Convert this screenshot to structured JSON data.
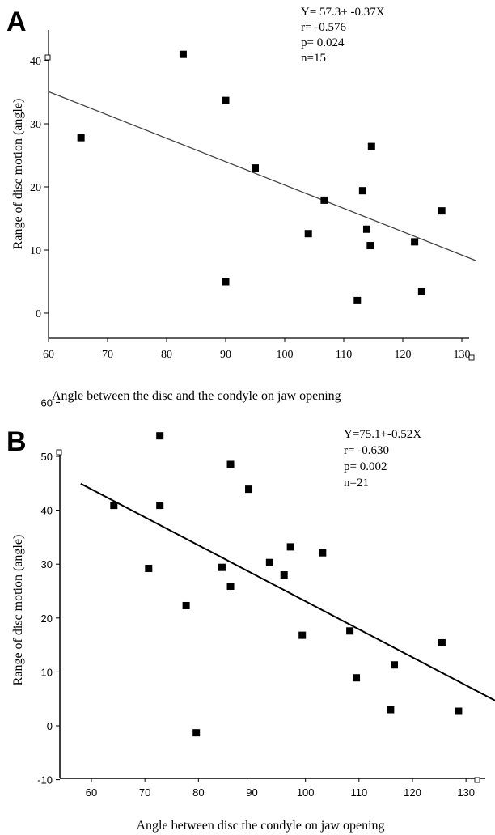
{
  "chart_data": [
    {
      "type": "scatter",
      "panel_label": "A",
      "xlabel": "Angle between the disc and the condyle on jaw opening",
      "ylabel": "Range of disc motion (angle)",
      "xlim": [
        60,
        133
      ],
      "ylim": [
        -4,
        44
      ],
      "xticks": [
        60,
        70,
        80,
        90,
        100,
        110,
        120,
        130
      ],
      "yticks": [
        0,
        10,
        20,
        30,
        40
      ],
      "grid": false,
      "stats": [
        "Y= 57.3+ -0.37X",
        "r= -0.576",
        "p= 0.024",
        "n=15"
      ],
      "regression": {
        "intercept": 57.3,
        "slope": -0.37
      },
      "points": [
        {
          "x": 65.5,
          "y": 27.8
        },
        {
          "x": 82.8,
          "y": 41.0
        },
        {
          "x": 90.0,
          "y": 33.7
        },
        {
          "x": 90.0,
          "y": 5.0
        },
        {
          "x": 95.0,
          "y": 23.0
        },
        {
          "x": 104.0,
          "y": 12.6
        },
        {
          "x": 106.7,
          "y": 17.9
        },
        {
          "x": 112.3,
          "y": 2.0
        },
        {
          "x": 113.2,
          "y": 19.4
        },
        {
          "x": 113.9,
          "y": 13.3
        },
        {
          "x": 114.5,
          "y": 10.7
        },
        {
          "x": 114.7,
          "y": 26.4
        },
        {
          "x": 122.0,
          "y": 11.3
        },
        {
          "x": 123.2,
          "y": 3.4
        },
        {
          "x": 126.6,
          "y": 16.2
        }
      ]
    },
    {
      "type": "scatter",
      "panel_label": "B",
      "xlabel": "Angle between disc the condyle on jaw opening",
      "ylabel": "Range of disc motion (angle)",
      "xlim": [
        55,
        135
      ],
      "ylim": [
        -10,
        60
      ],
      "xticks": [
        60,
        70,
        80,
        90,
        100,
        110,
        120,
        130
      ],
      "yticks": [
        -10,
        0,
        10,
        20,
        30,
        40,
        50,
        60
      ],
      "grid": false,
      "stats": [
        "Y=75.1+-0.52X",
        "r= -0.630",
        "p= 0.002",
        "n=21"
      ],
      "regression": {
        "intercept": 75.1,
        "slope": -0.52
      },
      "points": [
        {
          "x": 64.2,
          "y": 40.9
        },
        {
          "x": 70.7,
          "y": 29.2
        },
        {
          "x": 72.8,
          "y": 53.8
        },
        {
          "x": 72.8,
          "y": 40.9
        },
        {
          "x": 77.7,
          "y": 22.3
        },
        {
          "x": 79.6,
          "y": -1.3
        },
        {
          "x": 84.4,
          "y": 29.4
        },
        {
          "x": 86.0,
          "y": 48.5
        },
        {
          "x": 86.0,
          "y": 25.9
        },
        {
          "x": 89.4,
          "y": 43.9
        },
        {
          "x": 93.3,
          "y": 30.3
        },
        {
          "x": 96.0,
          "y": 28.0
        },
        {
          "x": 97.2,
          "y": 33.2
        },
        {
          "x": 99.4,
          "y": 16.8
        },
        {
          "x": 103.2,
          "y": 32.1
        },
        {
          "x": 108.3,
          "y": 17.6
        },
        {
          "x": 109.5,
          "y": 8.9
        },
        {
          "x": 115.9,
          "y": 3.0
        },
        {
          "x": 116.6,
          "y": 11.3
        },
        {
          "x": 125.5,
          "y": 15.4
        },
        {
          "x": 128.6,
          "y": 2.7
        }
      ]
    }
  ]
}
